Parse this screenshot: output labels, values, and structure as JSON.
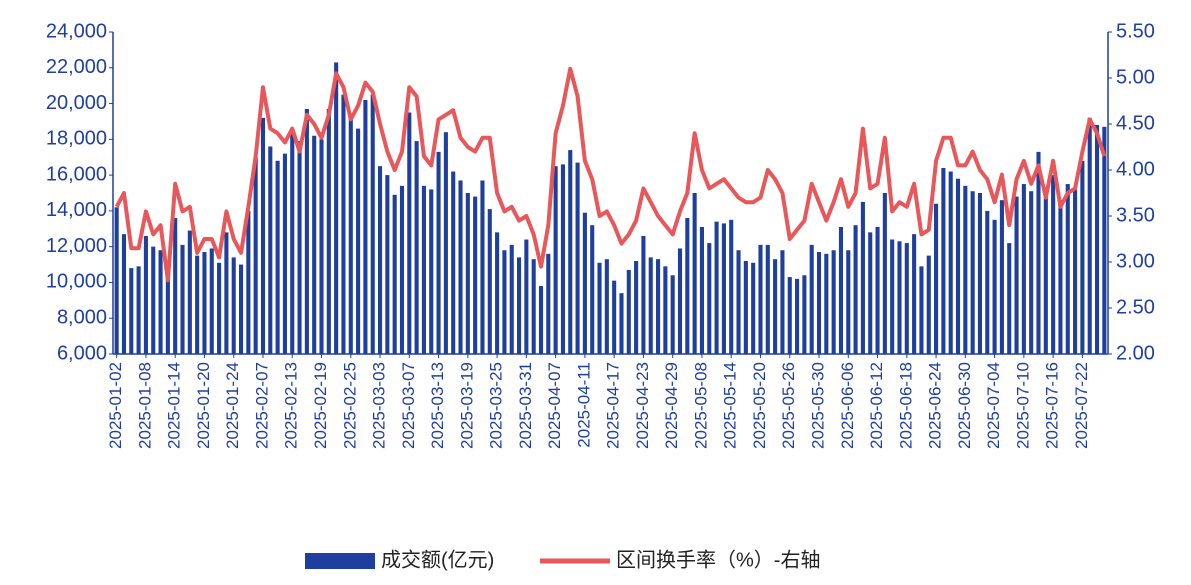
{
  "chart_data": {
    "type": "bar-line",
    "categories": [
      "2025-01-02",
      null,
      null,
      null,
      "2025-01-08",
      null,
      null,
      null,
      "2025-01-14",
      null,
      null,
      null,
      "2025-01-20",
      null,
      null,
      null,
      "2025-01-24",
      null,
      null,
      null,
      "2025-02-07",
      null,
      null,
      null,
      "2025-02-13",
      null,
      null,
      null,
      "2025-02-19",
      null,
      null,
      null,
      "2025-02-25",
      null,
      null,
      null,
      "2025-03-03",
      null,
      null,
      null,
      "2025-03-07",
      null,
      null,
      null,
      "2025-03-13",
      null,
      null,
      null,
      "2025-03-19",
      null,
      null,
      null,
      "2025-03-25",
      null,
      null,
      null,
      "2025-03-31",
      null,
      null,
      null,
      "2025-04-07",
      null,
      null,
      null,
      "2025-04-11",
      null,
      null,
      null,
      "2025-04-17",
      null,
      null,
      null,
      "2025-04-23",
      null,
      null,
      null,
      "2025-04-29",
      null,
      null,
      null,
      "2025-05-08",
      null,
      null,
      null,
      "2025-05-14",
      null,
      null,
      null,
      "2025-05-20",
      null,
      null,
      null,
      "2025-05-26",
      null,
      null,
      null,
      "2025-05-30",
      null,
      null,
      null,
      "2025-06-06",
      null,
      null,
      null,
      "2025-06-12",
      null,
      null,
      null,
      "2025-06-18",
      null,
      null,
      null,
      "2025-06-24",
      null,
      null,
      null,
      "2025-06-30",
      null,
      null,
      null,
      "2025-07-04",
      null,
      null,
      null,
      "2025-07-10",
      null,
      null,
      null,
      "2025-07-16",
      null,
      null,
      null,
      "2025-07-22",
      null,
      null,
      null
    ],
    "series": [
      {
        "name": "成交额(亿元)",
        "color": "#1f3f9f",
        "values": [
          14200,
          12700,
          10800,
          10900,
          12600,
          12000,
          11800,
          10200,
          13600,
          12100,
          12900,
          11500,
          11700,
          11900,
          11100,
          12800,
          11400,
          11000,
          14000,
          17000,
          19200,
          17600,
          16800,
          17200,
          18300,
          17900,
          19700,
          18200,
          18000,
          19700,
          22300,
          20500,
          19300,
          18600,
          20200,
          20500,
          16500,
          16000,
          14900,
          15400,
          19500,
          17900,
          15400,
          15200,
          17300,
          18400,
          16200,
          15700,
          15000,
          14800,
          15700,
          14100,
          12800,
          11800,
          12100,
          11400,
          12400,
          11300,
          9800,
          11600,
          16500,
          16600,
          17400,
          16700,
          13900,
          13200,
          11100,
          11300,
          10100,
          9400,
          10700,
          11200,
          12600,
          11400,
          11300,
          10900,
          10400,
          11900,
          13600,
          15000,
          13100,
          12200,
          13400,
          13300,
          13500,
          11800,
          11200,
          11100,
          12100,
          12100,
          11300,
          11800,
          10300,
          10200,
          10400,
          12100,
          11700,
          11600,
          11800,
          13100,
          11800,
          13200,
          14500,
          12800,
          13100,
          15000,
          12400,
          12300,
          12200,
          12700,
          10900,
          11500,
          14400,
          16400,
          16200,
          15800,
          15400,
          15100,
          15000,
          14000,
          13500,
          14600,
          12200,
          14800,
          15500,
          15100,
          17300,
          14800,
          16000,
          14600,
          15500,
          15200,
          16800,
          19200,
          18800,
          18700
        ]
      },
      {
        "name": "区间换手率（%）-右轴",
        "color": "#e8575a",
        "axis": "y2",
        "values": [
          3.6,
          3.75,
          3.15,
          3.15,
          3.55,
          3.3,
          3.4,
          2.8,
          3.85,
          3.55,
          3.6,
          3.1,
          3.25,
          3.25,
          3.05,
          3.55,
          3.25,
          3.1,
          3.6,
          4.15,
          4.9,
          4.45,
          4.4,
          4.3,
          4.45,
          4.2,
          4.6,
          4.5,
          4.35,
          4.6,
          5.05,
          4.9,
          4.55,
          4.7,
          4.95,
          4.85,
          4.5,
          4.2,
          4.0,
          4.2,
          4.9,
          4.8,
          4.15,
          4.05,
          4.55,
          4.6,
          4.65,
          4.35,
          4.25,
          4.2,
          4.35,
          4.35,
          3.75,
          3.55,
          3.6,
          3.45,
          3.5,
          3.3,
          2.95,
          3.4,
          4.4,
          4.7,
          5.1,
          4.8,
          4.1,
          3.9,
          3.5,
          3.55,
          3.4,
          3.2,
          3.3,
          3.45,
          3.8,
          3.65,
          3.5,
          3.4,
          3.3,
          3.55,
          3.75,
          4.4,
          4.0,
          3.8,
          3.85,
          3.9,
          3.8,
          3.7,
          3.65,
          3.65,
          3.7,
          4.0,
          3.9,
          3.75,
          3.25,
          3.35,
          3.45,
          3.85,
          3.65,
          3.45,
          3.65,
          3.9,
          3.6,
          3.75,
          4.45,
          3.8,
          3.85,
          4.35,
          3.55,
          3.65,
          3.6,
          3.85,
          3.3,
          3.35,
          4.1,
          4.35,
          4.35,
          4.05,
          4.05,
          4.2,
          4.0,
          3.9,
          3.65,
          3.95,
          3.4,
          3.9,
          4.1,
          3.85,
          4.05,
          3.7,
          4.1,
          3.6,
          3.75,
          3.8,
          4.2,
          4.55,
          4.4,
          4.15
        ]
      }
    ],
    "ylim": [
      6000,
      24000
    ],
    "yticks": [
      {
        "value": 6000,
        "label": "6,000"
      },
      {
        "value": 8000,
        "label": "8,000"
      },
      {
        "value": 10000,
        "label": "10,000"
      },
      {
        "value": 12000,
        "label": "12,000"
      },
      {
        "value": 14000,
        "label": "14,000"
      },
      {
        "value": 16000,
        "label": "16,000"
      },
      {
        "value": 18000,
        "label": "18,000"
      },
      {
        "value": 20000,
        "label": "20,000"
      },
      {
        "value": 22000,
        "label": "22,000"
      },
      {
        "value": 24000,
        "label": "24,000"
      }
    ],
    "y2lim": [
      2,
      5.5
    ],
    "y2ticks": [
      {
        "value": 2,
        "label": "2.00"
      },
      {
        "value": 2.5,
        "label": "2.50"
      },
      {
        "value": 3,
        "label": "3.00"
      },
      {
        "value": 3.5,
        "label": "3.50"
      },
      {
        "value": 4,
        "label": "4.00"
      },
      {
        "value": 4.5,
        "label": "4.50"
      },
      {
        "value": 5,
        "label": "5.00"
      },
      {
        "value": 5.5,
        "label": "5.50"
      }
    ],
    "grid": false,
    "legend": "bottom"
  }
}
